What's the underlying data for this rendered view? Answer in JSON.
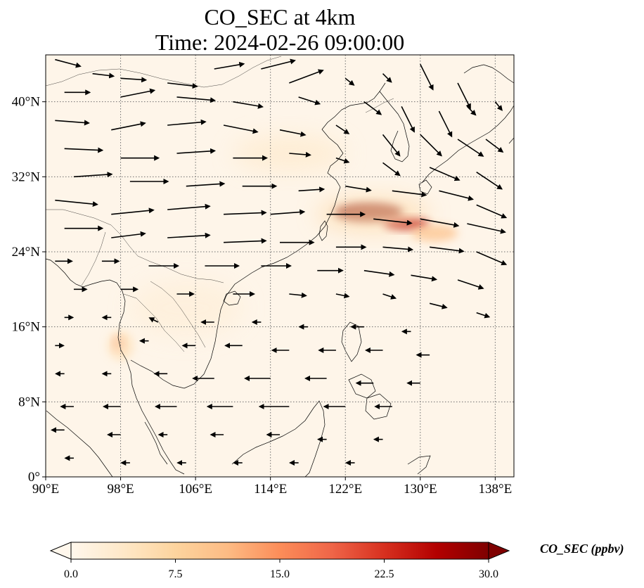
{
  "title": {
    "line1": "CO_SEC at 4km",
    "line2": "Time: 2024-02-26 09:00:00"
  },
  "map": {
    "lon_range": [
      90,
      140
    ],
    "lat_range": [
      0,
      45
    ],
    "x_ticks": [
      {
        "value": 90,
        "label": "90°E"
      },
      {
        "value": 98,
        "label": "98°E"
      },
      {
        "value": 106,
        "label": "106°E"
      },
      {
        "value": 114,
        "label": "114°E"
      },
      {
        "value": 122,
        "label": "122°E"
      },
      {
        "value": 130,
        "label": "130°E"
      },
      {
        "value": 138,
        "label": "138°E"
      }
    ],
    "y_ticks": [
      {
        "value": 0,
        "label": "0°"
      },
      {
        "value": 8,
        "label": "8°N"
      },
      {
        "value": 16,
        "label": "16°N"
      },
      {
        "value": 24,
        "label": "24°N"
      },
      {
        "value": 32,
        "label": "32°N"
      },
      {
        "value": 40,
        "label": "40°N"
      }
    ],
    "gridlines": true
  },
  "colorbar": {
    "label": "CO_SEC (ppbv)",
    "range": [
      0,
      30
    ],
    "extend": "both",
    "colormap": "OrRd",
    "colors": [
      "#fff7ec",
      "#fee8c8",
      "#fdd49e",
      "#fdbb84",
      "#fc8d59",
      "#ef6548",
      "#d7301f",
      "#b30000",
      "#7f0000"
    ],
    "ticks": [
      {
        "value": 0,
        "label": "0.0"
      },
      {
        "value": 7.5,
        "label": "7.5"
      },
      {
        "value": 15,
        "label": "15.0"
      },
      {
        "value": 22.5,
        "label": "22.5"
      },
      {
        "value": 30,
        "label": "30.0"
      }
    ]
  },
  "plumes": [
    {
      "lon": 124.5,
      "lat": 28.2,
      "rx_deg": 3.6,
      "ry_deg": 0.9,
      "value": 30
    },
    {
      "lon": 128.5,
      "lat": 27.0,
      "rx_deg": 2.4,
      "ry_deg": 0.6,
      "value": 26
    },
    {
      "lon": 131.5,
      "lat": 26.0,
      "rx_deg": 2.5,
      "ry_deg": 0.9,
      "value": 10
    },
    {
      "lon": 125.0,
      "lat": 28.0,
      "rx_deg": 6.0,
      "ry_deg": 1.8,
      "value": 6
    },
    {
      "lon": 97.8,
      "lat": 14.2,
      "rx_deg": 0.5,
      "ry_deg": 0.6,
      "value": 18
    },
    {
      "lon": 98.0,
      "lat": 14.0,
      "rx_deg": 1.4,
      "ry_deg": 1.6,
      "value": 5
    },
    {
      "lon": 116.0,
      "lat": 34.5,
      "rx_deg": 6.0,
      "ry_deg": 2.0,
      "value": 3
    },
    {
      "lon": 105.0,
      "lat": 18.0,
      "rx_deg": 6.0,
      "ry_deg": 3.0,
      "value": 2
    }
  ],
  "wind": [
    {
      "lon": 91,
      "lat": 44.5,
      "u": 3.0,
      "v": -0.8
    },
    {
      "lon": 95,
      "lat": 43.0,
      "u": 2.5,
      "v": -0.3
    },
    {
      "lon": 98,
      "lat": 42.5,
      "u": 3.0,
      "v": -0.2
    },
    {
      "lon": 103,
      "lat": 42.0,
      "u": 3.5,
      "v": -0.4
    },
    {
      "lon": 108,
      "lat": 43.5,
      "u": 3.5,
      "v": 0.6
    },
    {
      "lon": 113,
      "lat": 43.5,
      "u": 4.0,
      "v": 1.0
    },
    {
      "lon": 116,
      "lat": 42.0,
      "u": 4.0,
      "v": 1.5
    },
    {
      "lon": 122,
      "lat": 42.5,
      "u": 1.0,
      "v": -0.8
    },
    {
      "lon": 126,
      "lat": 43.0,
      "u": 1.0,
      "v": -1.0
    },
    {
      "lon": 130,
      "lat": 44.0,
      "u": 1.5,
      "v": -3.0
    },
    {
      "lon": 134,
      "lat": 42.0,
      "u": 1.5,
      "v": -3.0
    },
    {
      "lon": 92,
      "lat": 41.0,
      "u": 3.0,
      "v": 0.0
    },
    {
      "lon": 98,
      "lat": 40.5,
      "u": 4.0,
      "v": 0.8
    },
    {
      "lon": 104,
      "lat": 40.5,
      "u": 4.5,
      "v": -0.4
    },
    {
      "lon": 110,
      "lat": 40.0,
      "u": 3.5,
      "v": -0.6
    },
    {
      "lon": 117,
      "lat": 40.5,
      "u": 2.5,
      "v": -0.8
    },
    {
      "lon": 124,
      "lat": 40.0,
      "u": 2.0,
      "v": -1.5
    },
    {
      "lon": 128,
      "lat": 39.5,
      "u": 1.5,
      "v": -3.0
    },
    {
      "lon": 132,
      "lat": 39.0,
      "u": 1.5,
      "v": -3.0
    },
    {
      "lon": 135,
      "lat": 39.5,
      "u": 1.0,
      "v": -1.0
    },
    {
      "lon": 138,
      "lat": 40.0,
      "u": 0.8,
      "v": -1.0
    },
    {
      "lon": 91,
      "lat": 38.0,
      "u": 4.0,
      "v": -0.3
    },
    {
      "lon": 97,
      "lat": 37.0,
      "u": 4.0,
      "v": 0.8
    },
    {
      "lon": 103,
      "lat": 37.5,
      "u": 4.5,
      "v": 0.4
    },
    {
      "lon": 109,
      "lat": 37.5,
      "u": 4.0,
      "v": -0.8
    },
    {
      "lon": 115,
      "lat": 37.0,
      "u": 3.0,
      "v": -0.6
    },
    {
      "lon": 121,
      "lat": 37.5,
      "u": 1.5,
      "v": -1.0
    },
    {
      "lon": 126,
      "lat": 36.5,
      "u": 2.0,
      "v": -2.5
    },
    {
      "lon": 130,
      "lat": 36.5,
      "u": 2.5,
      "v": -2.5
    },
    {
      "lon": 134,
      "lat": 36.0,
      "u": 3.0,
      "v": -2.0
    },
    {
      "lon": 137,
      "lat": 36.0,
      "u": 2.0,
      "v": -1.5
    },
    {
      "lon": 92,
      "lat": 35.0,
      "u": 4.5,
      "v": -0.2
    },
    {
      "lon": 98,
      "lat": 34.0,
      "u": 4.5,
      "v": 0.0
    },
    {
      "lon": 104,
      "lat": 34.5,
      "u": 4.5,
      "v": 0.3
    },
    {
      "lon": 110,
      "lat": 34.0,
      "u": 4.0,
      "v": 0.0
    },
    {
      "lon": 116,
      "lat": 34.5,
      "u": 2.5,
      "v": -0.2
    },
    {
      "lon": 121,
      "lat": 34.0,
      "u": 1.5,
      "v": -0.5
    },
    {
      "lon": 126,
      "lat": 33.5,
      "u": 2.0,
      "v": -1.5
    },
    {
      "lon": 131,
      "lat": 33.0,
      "u": 3.5,
      "v": -1.5
    },
    {
      "lon": 136,
      "lat": 32.5,
      "u": 3.0,
      "v": -2.0
    },
    {
      "lon": 93,
      "lat": 32.0,
      "u": 4.5,
      "v": 0.3
    },
    {
      "lon": 99,
      "lat": 31.5,
      "u": 4.5,
      "v": 0.0
    },
    {
      "lon": 105,
      "lat": 31.0,
      "u": 4.5,
      "v": 0.3
    },
    {
      "lon": 111,
      "lat": 31.0,
      "u": 4.0,
      "v": 0.0
    },
    {
      "lon": 117,
      "lat": 30.5,
      "u": 3.0,
      "v": 0.2
    },
    {
      "lon": 122,
      "lat": 31.0,
      "u": 3.0,
      "v": -0.5
    },
    {
      "lon": 127,
      "lat": 30.5,
      "u": 4.0,
      "v": -0.5
    },
    {
      "lon": 132,
      "lat": 30.5,
      "u": 4.0,
      "v": -1.0
    },
    {
      "lon": 136,
      "lat": 29.0,
      "u": 3.5,
      "v": -1.5
    },
    {
      "lon": 91,
      "lat": 29.5,
      "u": 5.0,
      "v": -0.5
    },
    {
      "lon": 97,
      "lat": 28.0,
      "u": 5.0,
      "v": 0.5
    },
    {
      "lon": 103,
      "lat": 28.5,
      "u": 5.0,
      "v": 0.4
    },
    {
      "lon": 109,
      "lat": 28.0,
      "u": 5.0,
      "v": 0.2
    },
    {
      "lon": 114,
      "lat": 28.0,
      "u": 4.0,
      "v": 0.3
    },
    {
      "lon": 120,
      "lat": 28.0,
      "u": 4.5,
      "v": 0.0
    },
    {
      "lon": 125,
      "lat": 27.5,
      "u": 4.5,
      "v": -0.5
    },
    {
      "lon": 130,
      "lat": 27.5,
      "u": 4.5,
      "v": -0.8
    },
    {
      "lon": 135,
      "lat": 27.0,
      "u": 4.5,
      "v": -1.0
    },
    {
      "lon": 92,
      "lat": 26.5,
      "u": 4.5,
      "v": 0.0
    },
    {
      "lon": 97,
      "lat": 25.5,
      "u": 4.0,
      "v": 0.5
    },
    {
      "lon": 103,
      "lat": 25.5,
      "u": 5.0,
      "v": 0.3
    },
    {
      "lon": 109,
      "lat": 25.0,
      "u": 5.0,
      "v": 0.2
    },
    {
      "lon": 115,
      "lat": 25.0,
      "u": 4.0,
      "v": 0.0
    },
    {
      "lon": 121,
      "lat": 24.5,
      "u": 3.5,
      "v": 0.0
    },
    {
      "lon": 126,
      "lat": 24.5,
      "u": 3.5,
      "v": -0.3
    },
    {
      "lon": 131,
      "lat": 24.5,
      "u": 4.0,
      "v": -0.5
    },
    {
      "lon": 136,
      "lat": 24.0,
      "u": 3.5,
      "v": -1.5
    },
    {
      "lon": 91,
      "lat": 23.0,
      "u": 2.0,
      "v": 0.0
    },
    {
      "lon": 96,
      "lat": 23.0,
      "u": 2.0,
      "v": 0.0
    },
    {
      "lon": 101,
      "lat": 22.5,
      "u": 3.5,
      "v": 0.0
    },
    {
      "lon": 107,
      "lat": 22.5,
      "u": 4.0,
      "v": 0.0
    },
    {
      "lon": 113,
      "lat": 22.5,
      "u": 3.5,
      "v": 0.0
    },
    {
      "lon": 119,
      "lat": 22.0,
      "u": 3.0,
      "v": 0.0
    },
    {
      "lon": 124,
      "lat": 22.0,
      "u": 3.5,
      "v": -0.5
    },
    {
      "lon": 129,
      "lat": 21.5,
      "u": 3.0,
      "v": -0.5
    },
    {
      "lon": 134,
      "lat": 21.0,
      "u": 3.0,
      "v": -1.0
    },
    {
      "lon": 93,
      "lat": 20.0,
      "u": 1.5,
      "v": 0.0
    },
    {
      "lon": 98,
      "lat": 20.0,
      "u": 2.0,
      "v": 0.0
    },
    {
      "lon": 104,
      "lat": 19.5,
      "u": 2.0,
      "v": 0.0
    },
    {
      "lon": 110,
      "lat": 19.5,
      "u": 2.5,
      "v": 0.0
    },
    {
      "lon": 116,
      "lat": 19.5,
      "u": 2.0,
      "v": -0.2
    },
    {
      "lon": 121,
      "lat": 19.5,
      "u": 1.5,
      "v": -0.3
    },
    {
      "lon": 126,
      "lat": 19.5,
      "u": 1.5,
      "v": -0.5
    },
    {
      "lon": 131,
      "lat": 18.5,
      "u": 2.0,
      "v": -0.5
    },
    {
      "lon": 136,
      "lat": 17.5,
      "u": 1.5,
      "v": -0.5
    },
    {
      "lon": 92,
      "lat": 17.0,
      "u": 1.0,
      "v": 0.0
    },
    {
      "lon": 97,
      "lat": 17.0,
      "u": -1.0,
      "v": 0.0
    },
    {
      "lon": 102,
      "lat": 16.5,
      "u": -1.0,
      "v": 0.5
    },
    {
      "lon": 108,
      "lat": 16.5,
      "u": -1.5,
      "v": 0.0
    },
    {
      "lon": 113,
      "lat": 16.5,
      "u": -1.0,
      "v": 0.0
    },
    {
      "lon": 118,
      "lat": 16.0,
      "u": -1.0,
      "v": 0.0
    },
    {
      "lon": 124,
      "lat": 16.0,
      "u": -1.5,
      "v": 0.0
    },
    {
      "lon": 129,
      "lat": 15.5,
      "u": -1.0,
      "v": 0.0
    },
    {
      "lon": 91,
      "lat": 14.0,
      "u": 1.0,
      "v": 0.0
    },
    {
      "lon": 101,
      "lat": 14.5,
      "u": -1.0,
      "v": 0.0
    },
    {
      "lon": 106,
      "lat": 14.0,
      "u": -1.5,
      "v": 0.0
    },
    {
      "lon": 111,
      "lat": 14.0,
      "u": -2.0,
      "v": 0.0
    },
    {
      "lon": 116,
      "lat": 13.5,
      "u": -2.0,
      "v": 0.0
    },
    {
      "lon": 121,
      "lat": 13.5,
      "u": -2.0,
      "v": 0.0
    },
    {
      "lon": 126,
      "lat": 13.5,
      "u": -2.0,
      "v": 0.0
    },
    {
      "lon": 131,
      "lat": 13.0,
      "u": -1.5,
      "v": 0.0
    },
    {
      "lon": 92,
      "lat": 11.0,
      "u": -1.0,
      "v": 0.0
    },
    {
      "lon": 97,
      "lat": 11.0,
      "u": -1.0,
      "v": 0.0
    },
    {
      "lon": 103,
      "lat": 11.0,
      "u": -1.5,
      "v": 0.0
    },
    {
      "lon": 108,
      "lat": 10.5,
      "u": -2.5,
      "v": 0.0
    },
    {
      "lon": 114,
      "lat": 10.5,
      "u": -3.0,
      "v": 0.0
    },
    {
      "lon": 120,
      "lat": 10.5,
      "u": -2.5,
      "v": 0.0
    },
    {
      "lon": 125,
      "lat": 10.0,
      "u": -2.0,
      "v": 0.0
    },
    {
      "lon": 130,
      "lat": 10.0,
      "u": -1.5,
      "v": 0.0
    },
    {
      "lon": 93,
      "lat": 7.5,
      "u": -1.5,
      "v": 0.0
    },
    {
      "lon": 98,
      "lat": 7.5,
      "u": -2.0,
      "v": 0.0
    },
    {
      "lon": 104,
      "lat": 7.5,
      "u": -2.5,
      "v": 0.0
    },
    {
      "lon": 110,
      "lat": 7.5,
      "u": -3.0,
      "v": 0.0
    },
    {
      "lon": 116,
      "lat": 7.5,
      "u": -3.5,
      "v": 0.0
    },
    {
      "lon": 122,
      "lat": 7.5,
      "u": -2.5,
      "v": 0.0
    },
    {
      "lon": 127,
      "lat": 7.5,
      "u": -2.0,
      "v": 0.0
    },
    {
      "lon": 92,
      "lat": 5.0,
      "u": -1.5,
      "v": 0.0
    },
    {
      "lon": 98,
      "lat": 4.5,
      "u": -1.5,
      "v": 0.0
    },
    {
      "lon": 103,
      "lat": 4.5,
      "u": -1.0,
      "v": 0.0
    },
    {
      "lon": 109,
      "lat": 4.5,
      "u": -1.5,
      "v": 0.0
    },
    {
      "lon": 115,
      "lat": 4.5,
      "u": -1.5,
      "v": 0.0
    },
    {
      "lon": 120,
      "lat": 4.0,
      "u": -1.0,
      "v": 0.0
    },
    {
      "lon": 126,
      "lat": 4.0,
      "u": -1.0,
      "v": 0.0
    },
    {
      "lon": 93,
      "lat": 2.0,
      "u": -1.0,
      "v": 0.0
    },
    {
      "lon": 99,
      "lat": 1.5,
      "u": -1.0,
      "v": 0.0
    },
    {
      "lon": 105,
      "lat": 1.5,
      "u": -1.0,
      "v": 0.0
    },
    {
      "lon": 111,
      "lat": 1.5,
      "u": -1.0,
      "v": 0.0
    },
    {
      "lon": 117,
      "lat": 1.5,
      "u": -1.0,
      "v": 0.0
    },
    {
      "lon": 123,
      "lat": 1.5,
      "u": -1.0,
      "v": 0.0
    }
  ]
}
